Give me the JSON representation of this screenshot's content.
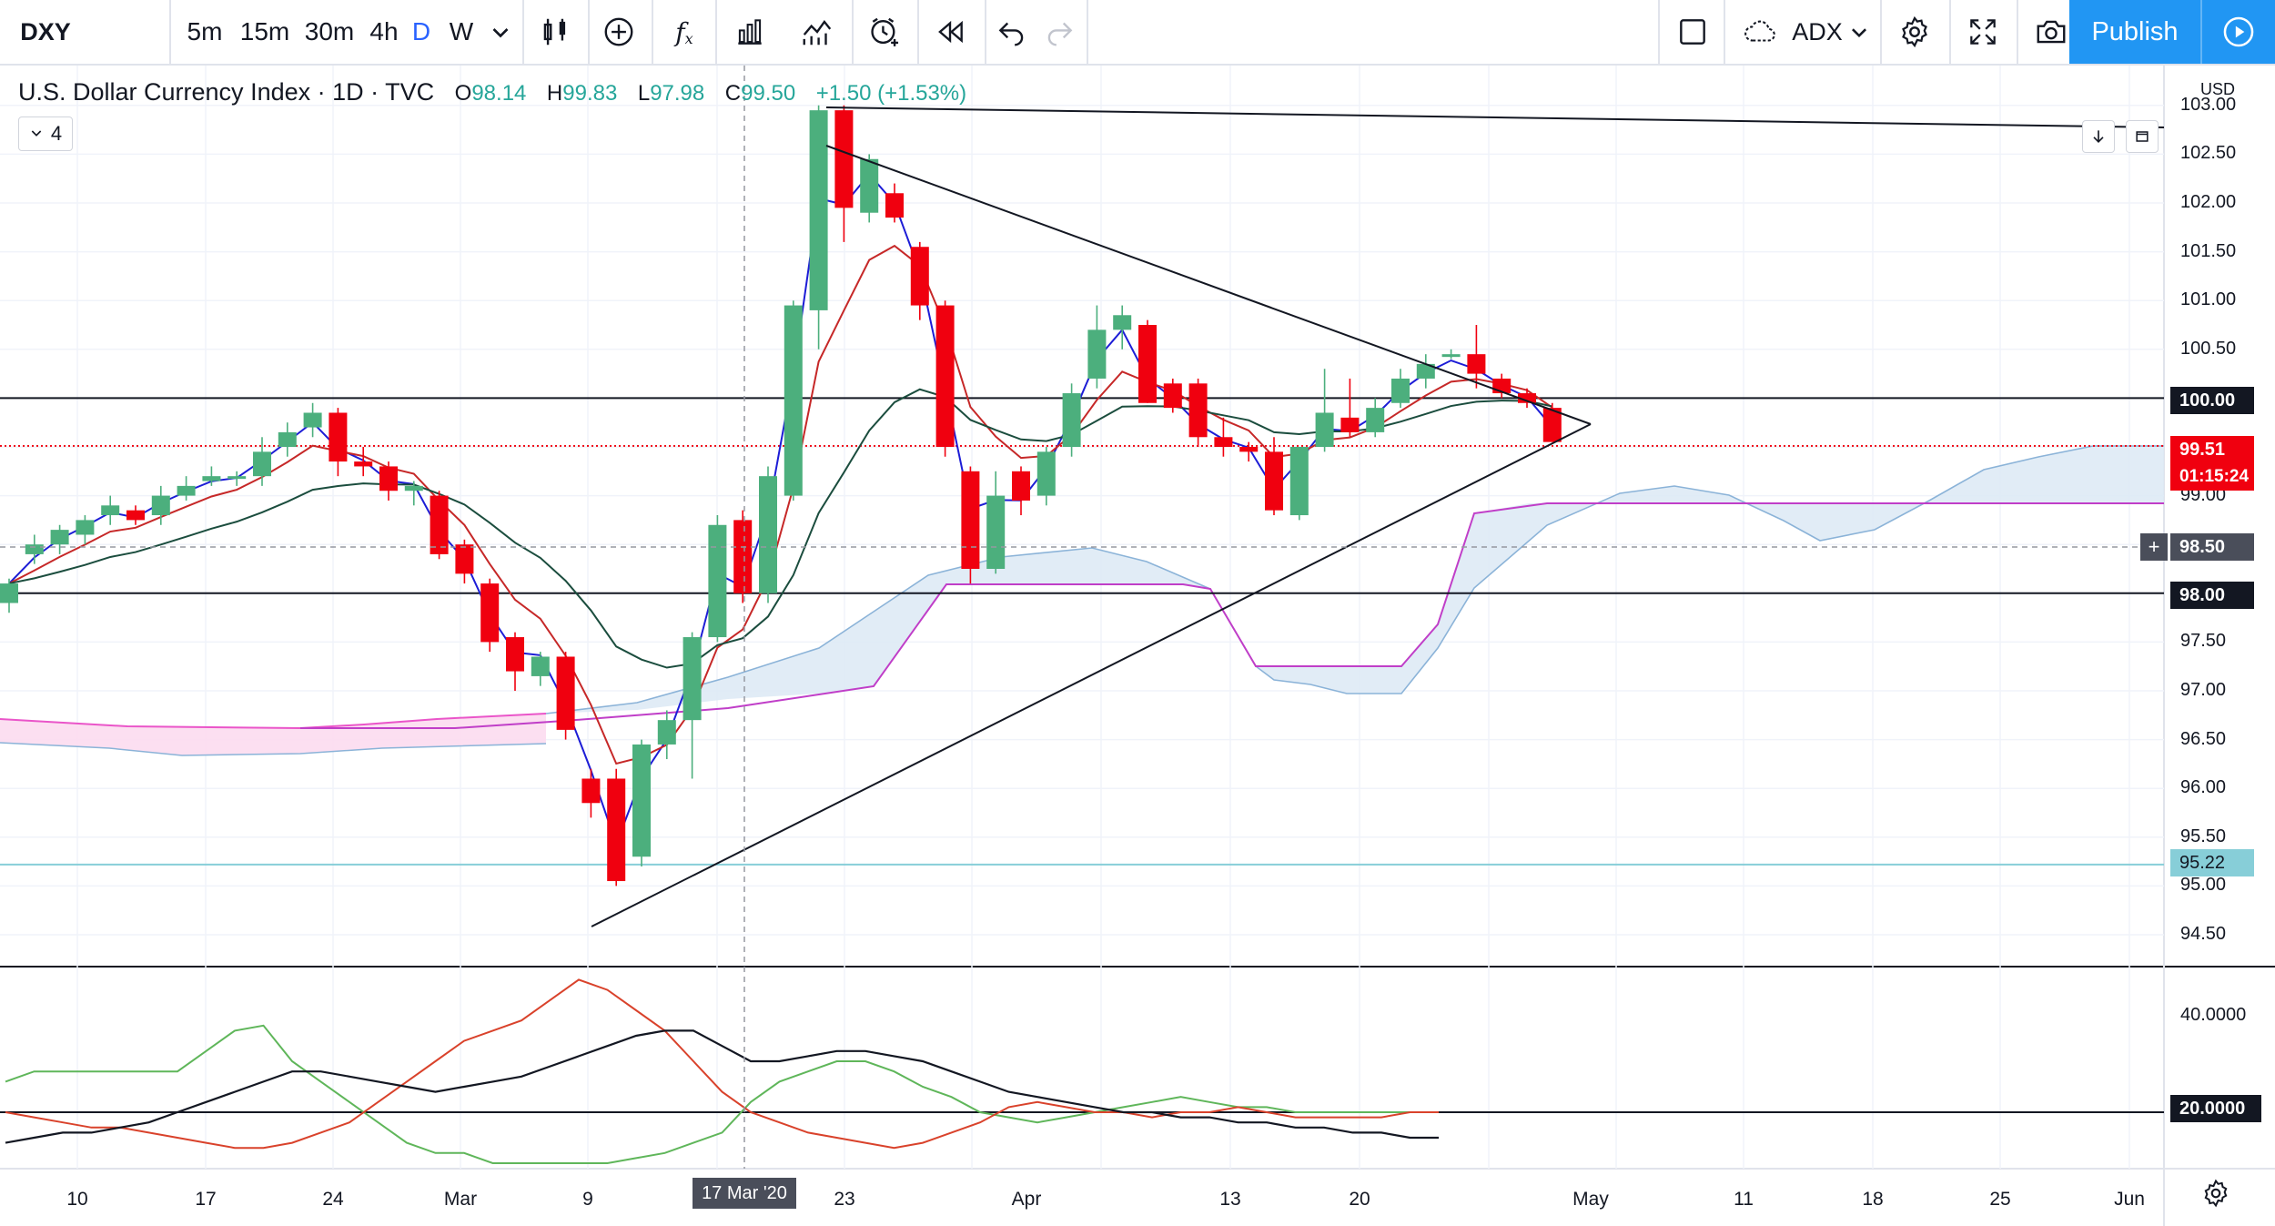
{
  "toolbar": {
    "symbol": "DXY",
    "intervals": [
      "5m",
      "15m",
      "30m",
      "4h",
      "D",
      "W"
    ],
    "active_interval": "D",
    "fx_label": "f",
    "indicator_name": "ADX",
    "publish_label": "Publish"
  },
  "legend": {
    "title": "U.S. Dollar Currency Index · 1D · TVC",
    "o_label": "O",
    "o": "98.14",
    "h_label": "H",
    "h": "99.83",
    "l_label": "L",
    "l": "97.98",
    "c_label": "C",
    "c": "99.50",
    "change": "+1.50 (+1.53%)",
    "indicator_count": "4"
  },
  "currency": "USD",
  "price_axis": {
    "ticks": [
      "103.00",
      "102.50",
      "102.00",
      "101.50",
      "101.00",
      "100.50",
      "99.00",
      "97.50",
      "97.00",
      "96.50",
      "96.00",
      "95.50",
      "95.00",
      "94.50"
    ],
    "labels": {
      "level_100": "100.00",
      "last_price": "99.51",
      "countdown": "01:15:24",
      "crosshair": "98.50",
      "level_98": "98.00",
      "level_95": "95.22"
    }
  },
  "adx_axis": {
    "ticks": [
      "40.0000"
    ],
    "level_label": "20.0000"
  },
  "time_axis": {
    "ticks": [
      "10",
      "17",
      "24",
      "Mar",
      "9",
      "23",
      "Apr",
      "13",
      "20",
      "May",
      "11",
      "18",
      "25",
      "Jun"
    ],
    "crosshair_label": "17 Mar '20"
  },
  "colors": {
    "up": "#4caf7d",
    "down": "#f0000f",
    "accent": "#2196f3",
    "ma_fast": "#1d1dd6",
    "ma_mid": "#c62828",
    "ma_slow": "#1b4d3e",
    "cloud_up": "#dce9f5",
    "cloud_down": "#fcdcef"
  },
  "chart_data": {
    "type": "candlestick",
    "ylim": [
      94.3,
      103.15
    ],
    "candles": [
      {
        "o": 97.9,
        "h": 98.15,
        "l": 97.8,
        "c": 98.1
      },
      {
        "o": 98.4,
        "h": 98.6,
        "l": 98.3,
        "c": 98.5
      },
      {
        "o": 98.5,
        "h": 98.7,
        "l": 98.4,
        "c": 98.65
      },
      {
        "o": 98.6,
        "h": 98.8,
        "l": 98.5,
        "c": 98.75
      },
      {
        "o": 98.8,
        "h": 99.0,
        "l": 98.7,
        "c": 98.9
      },
      {
        "o": 98.85,
        "h": 98.9,
        "l": 98.7,
        "c": 98.75
      },
      {
        "o": 98.8,
        "h": 99.1,
        "l": 98.7,
        "c": 99.0
      },
      {
        "o": 99.0,
        "h": 99.2,
        "l": 98.95,
        "c": 99.1
      },
      {
        "o": 99.15,
        "h": 99.3,
        "l": 99.1,
        "c": 99.2
      },
      {
        "o": 99.2,
        "h": 99.25,
        "l": 99.1,
        "c": 99.2
      },
      {
        "o": 99.2,
        "h": 99.6,
        "l": 99.1,
        "c": 99.45
      },
      {
        "o": 99.5,
        "h": 99.75,
        "l": 99.4,
        "c": 99.65
      },
      {
        "o": 99.7,
        "h": 99.95,
        "l": 99.6,
        "c": 99.85
      },
      {
        "o": 99.85,
        "h": 99.9,
        "l": 99.2,
        "c": 99.35
      },
      {
        "o": 99.35,
        "h": 99.5,
        "l": 99.2,
        "c": 99.3
      },
      {
        "o": 99.3,
        "h": 99.35,
        "l": 98.95,
        "c": 99.05
      },
      {
        "o": 99.05,
        "h": 99.15,
        "l": 98.9,
        "c": 99.1
      },
      {
        "o": 99.0,
        "h": 99.05,
        "l": 98.35,
        "c": 98.4
      },
      {
        "o": 98.5,
        "h": 98.55,
        "l": 98.1,
        "c": 98.2
      },
      {
        "o": 98.1,
        "h": 98.15,
        "l": 97.4,
        "c": 97.5
      },
      {
        "o": 97.55,
        "h": 97.6,
        "l": 97.0,
        "c": 97.2
      },
      {
        "o": 97.15,
        "h": 97.4,
        "l": 97.05,
        "c": 97.35
      },
      {
        "o": 97.35,
        "h": 97.4,
        "l": 96.5,
        "c": 96.6
      },
      {
        "o": 96.1,
        "h": 96.2,
        "l": 95.7,
        "c": 95.85
      },
      {
        "o": 96.1,
        "h": 96.2,
        "l": 95.0,
        "c": 95.05
      },
      {
        "o": 95.3,
        "h": 96.5,
        "l": 95.2,
        "c": 96.45
      },
      {
        "o": 96.45,
        "h": 96.8,
        "l": 96.3,
        "c": 96.7
      },
      {
        "o": 96.7,
        "h": 97.6,
        "l": 96.1,
        "c": 97.55
      },
      {
        "o": 97.55,
        "h": 98.8,
        "l": 97.5,
        "c": 98.7
      },
      {
        "o": 98.75,
        "h": 98.85,
        "l": 97.9,
        "c": 98.0
      },
      {
        "o": 98.0,
        "h": 99.3,
        "l": 97.9,
        "c": 99.2
      },
      {
        "o": 99.0,
        "h": 101.0,
        "l": 98.95,
        "c": 100.95
      },
      {
        "o": 100.9,
        "h": 103.0,
        "l": 100.5,
        "c": 102.95
      },
      {
        "o": 102.95,
        "h": 103.0,
        "l": 101.6,
        "c": 101.95
      },
      {
        "o": 101.9,
        "h": 102.5,
        "l": 101.8,
        "c": 102.45
      },
      {
        "o": 102.1,
        "h": 102.2,
        "l": 101.8,
        "c": 101.85
      },
      {
        "o": 101.55,
        "h": 101.6,
        "l": 100.8,
        "c": 100.95
      },
      {
        "o": 100.95,
        "h": 101.0,
        "l": 99.4,
        "c": 99.5
      },
      {
        "o": 99.25,
        "h": 99.3,
        "l": 98.1,
        "c": 98.25
      },
      {
        "o": 98.25,
        "h": 99.25,
        "l": 98.2,
        "c": 99.0
      },
      {
        "o": 99.25,
        "h": 99.3,
        "l": 98.8,
        "c": 98.95
      },
      {
        "o": 99.0,
        "h": 99.5,
        "l": 98.9,
        "c": 99.45
      },
      {
        "o": 99.5,
        "h": 100.15,
        "l": 99.4,
        "c": 100.05
      },
      {
        "o": 100.2,
        "h": 100.95,
        "l": 100.1,
        "c": 100.7
      },
      {
        "o": 100.7,
        "h": 100.95,
        "l": 100.5,
        "c": 100.85
      },
      {
        "o": 100.75,
        "h": 100.8,
        "l": 99.95,
        "c": 99.95
      },
      {
        "o": 100.15,
        "h": 100.2,
        "l": 99.85,
        "c": 99.9
      },
      {
        "o": 100.15,
        "h": 100.2,
        "l": 99.5,
        "c": 99.6
      },
      {
        "o": 99.6,
        "h": 99.8,
        "l": 99.4,
        "c": 99.5
      },
      {
        "o": 99.5,
        "h": 99.55,
        "l": 99.35,
        "c": 99.45
      },
      {
        "o": 99.45,
        "h": 99.6,
        "l": 98.8,
        "c": 98.85
      },
      {
        "o": 98.8,
        "h": 99.5,
        "l": 98.75,
        "c": 99.5
      },
      {
        "o": 99.5,
        "h": 100.3,
        "l": 99.45,
        "c": 99.85
      },
      {
        "o": 99.8,
        "h": 100.2,
        "l": 99.6,
        "c": 99.65
      },
      {
        "o": 99.65,
        "h": 100.0,
        "l": 99.6,
        "c": 99.9
      },
      {
        "o": 99.95,
        "h": 100.3,
        "l": 99.9,
        "c": 100.2
      },
      {
        "o": 100.2,
        "h": 100.45,
        "l": 100.1,
        "c": 100.35
      },
      {
        "o": 100.45,
        "h": 100.5,
        "l": 100.4,
        "c": 100.45
      },
      {
        "o": 100.45,
        "h": 100.75,
        "l": 100.1,
        "c": 100.25
      },
      {
        "o": 100.2,
        "h": 100.25,
        "l": 100.0,
        "c": 100.05
      },
      {
        "o": 100.05,
        "h": 100.1,
        "l": 99.9,
        "c": 99.95
      },
      {
        "o": 99.9,
        "h": 99.95,
        "l": 99.55,
        "c": 99.55
      }
    ],
    "levels": [
      100.0,
      99.51,
      98.5,
      98.0,
      95.22
    ],
    "adx": {
      "ylim": [
        10,
        48
      ],
      "level": 20
    }
  }
}
